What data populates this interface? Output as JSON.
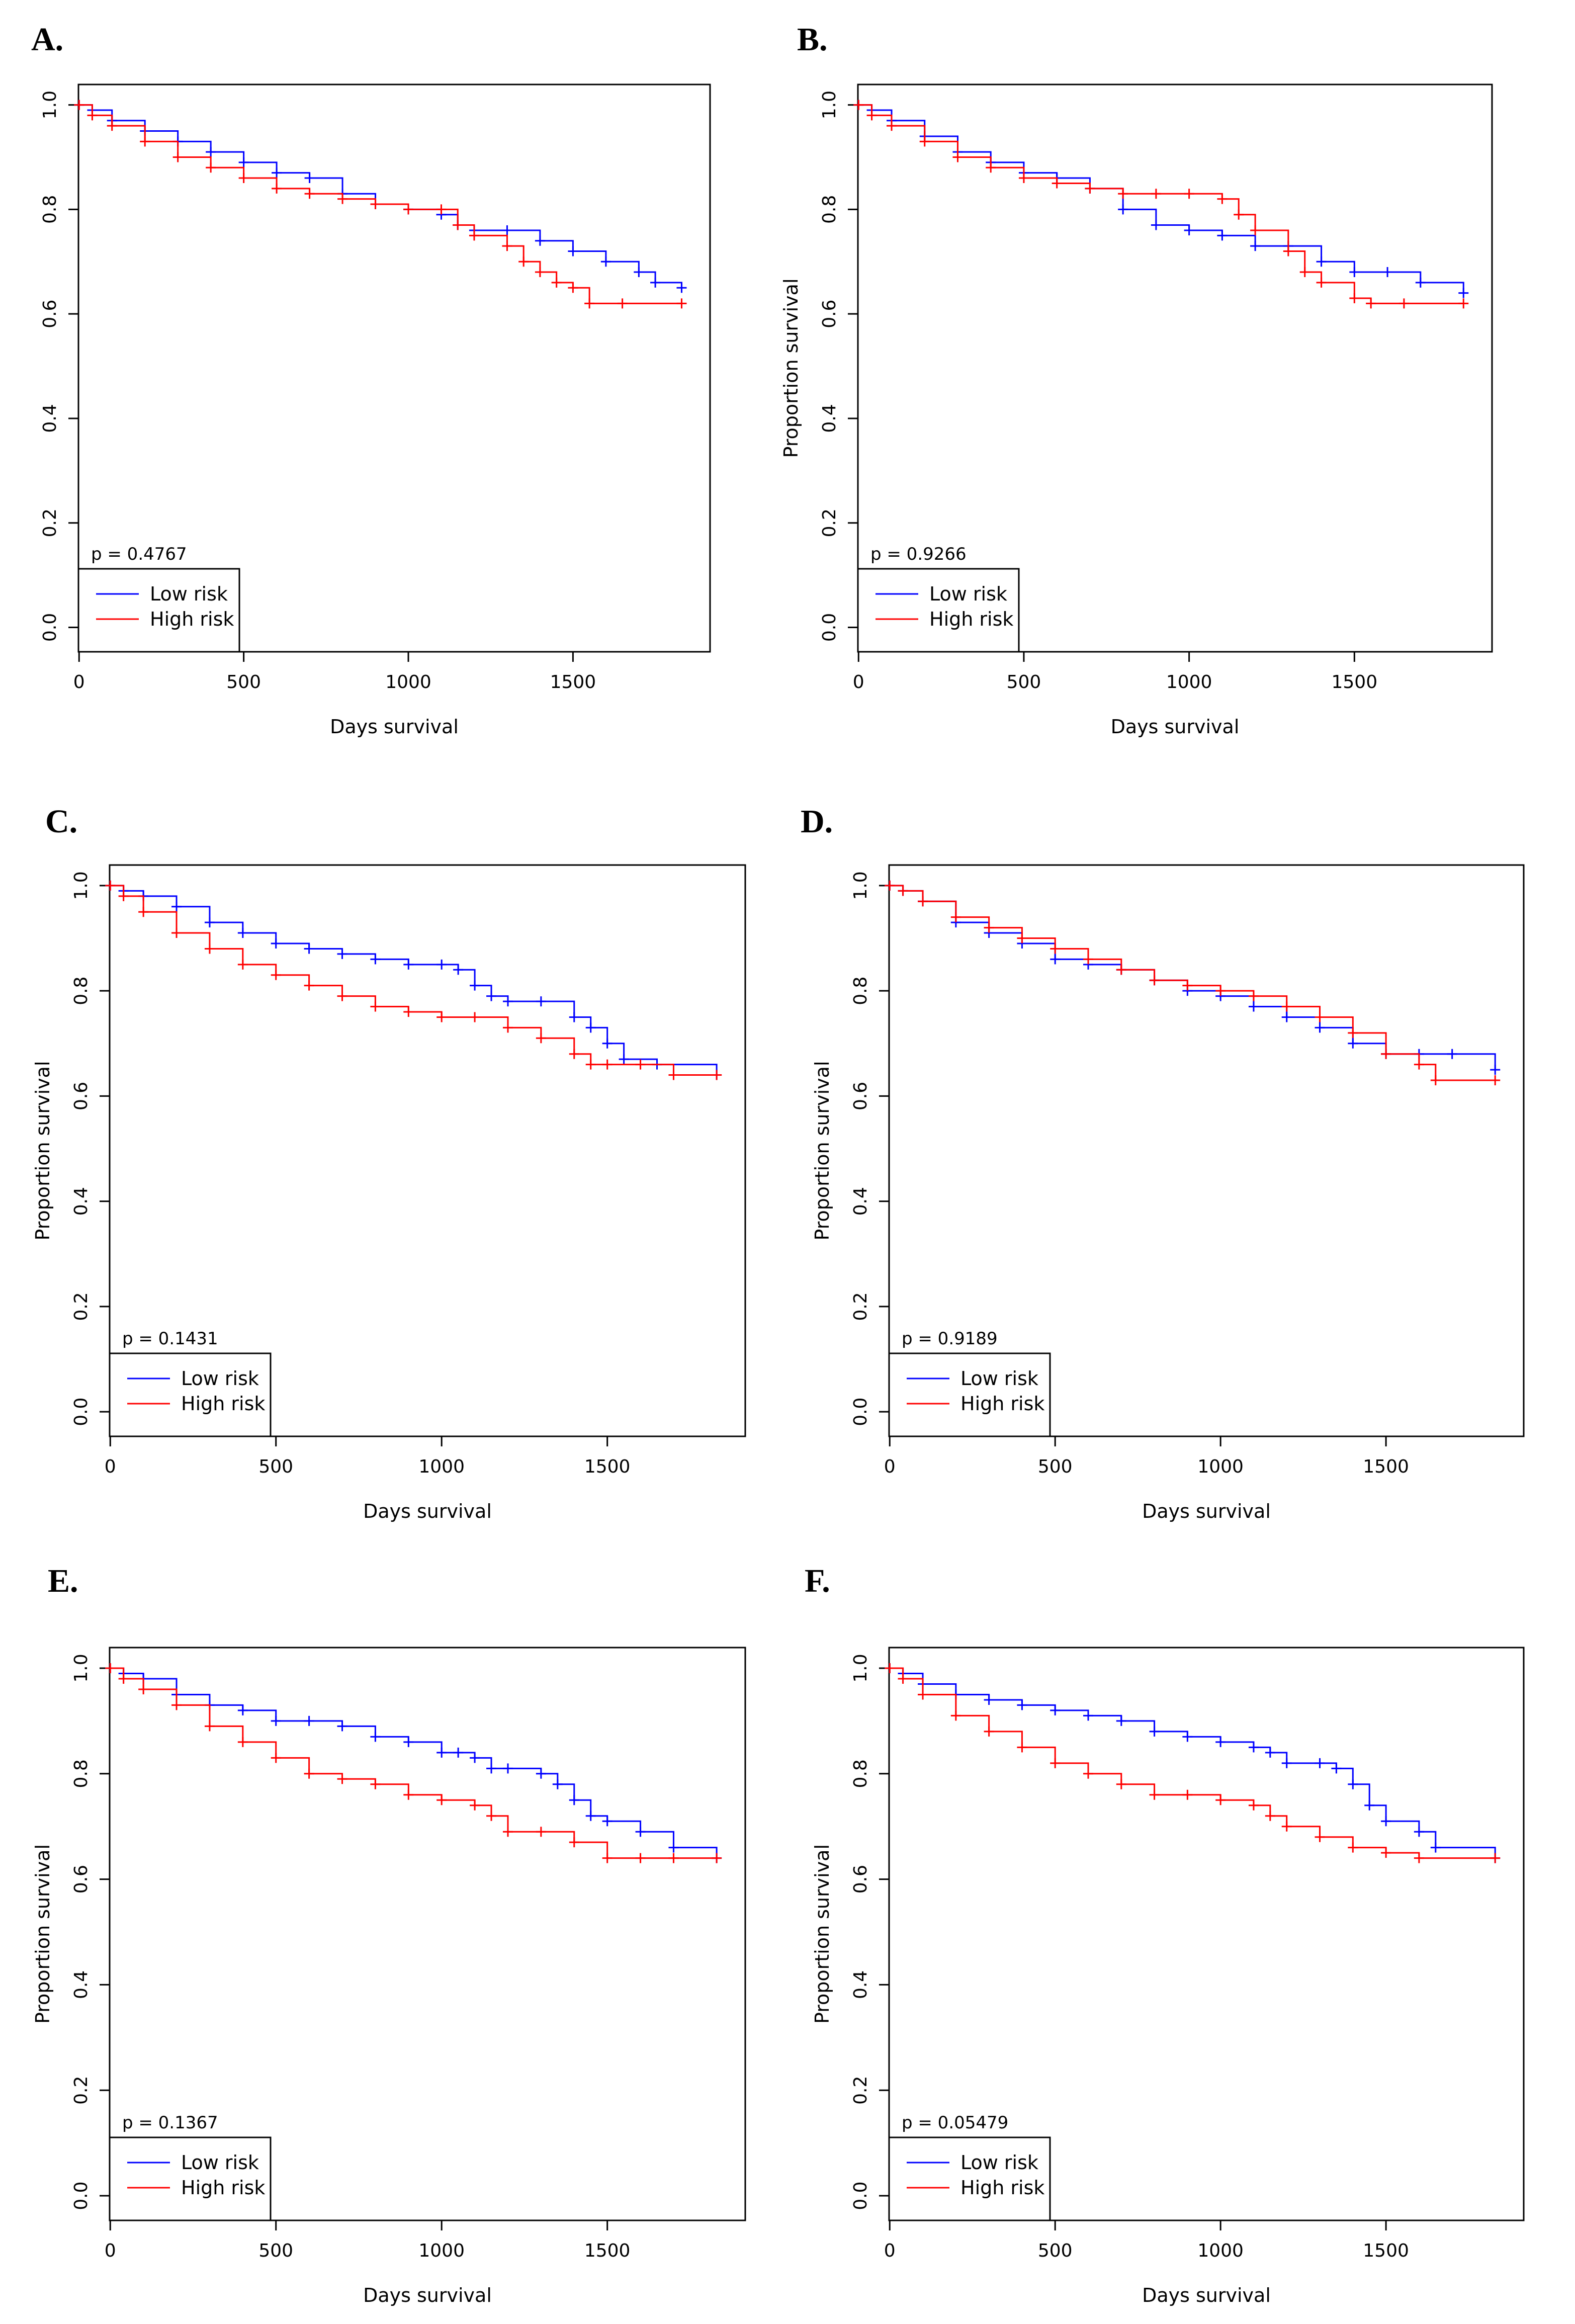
{
  "figure": {
    "panels_text": [
      "A.",
      "B.",
      "C.",
      "D.",
      "E.",
      "F."
    ]
  },
  "chart_data": [
    {
      "panel": "A.",
      "type": "line",
      "title": "",
      "xlabel": "Days survival",
      "ylabel": "",
      "xlim": [
        0,
        1850
      ],
      "ylim": [
        0,
        1.0
      ],
      "xticks": [
        "0",
        "500",
        "1000",
        "1500"
      ],
      "yticks": [
        "0.0",
        "0.2",
        "0.4",
        "0.6",
        "0.8",
        "1.0"
      ],
      "pvalue": "p = 0.4767",
      "legend": [
        "Low risk",
        "High risk"
      ],
      "legend_position": "bottom-left",
      "series": [
        {
          "name": "Low risk",
          "color": "#0000ff",
          "x": [
            0,
            40,
            100,
            200,
            300,
            400,
            500,
            600,
            700,
            800,
            900,
            1000,
            1100,
            1150,
            1200,
            1300,
            1400,
            1500,
            1600,
            1700,
            1750,
            1830
          ],
          "y": [
            1.0,
            0.99,
            0.97,
            0.95,
            0.93,
            0.91,
            0.89,
            0.87,
            0.86,
            0.83,
            0.81,
            0.8,
            0.79,
            0.77,
            0.76,
            0.76,
            0.74,
            0.72,
            0.7,
            0.68,
            0.66,
            0.65
          ]
        },
        {
          "name": "High risk",
          "color": "#ff0000",
          "x": [
            0,
            40,
            100,
            200,
            300,
            400,
            500,
            600,
            700,
            800,
            900,
            1000,
            1100,
            1150,
            1200,
            1300,
            1350,
            1400,
            1450,
            1500,
            1550,
            1650,
            1830
          ],
          "y": [
            1.0,
            0.98,
            0.96,
            0.93,
            0.9,
            0.88,
            0.86,
            0.84,
            0.83,
            0.82,
            0.81,
            0.8,
            0.8,
            0.77,
            0.75,
            0.73,
            0.7,
            0.68,
            0.66,
            0.65,
            0.62,
            0.62,
            0.62
          ]
        }
      ]
    },
    {
      "panel": "B.",
      "type": "line",
      "title": "",
      "xlabel": "Days survival",
      "ylabel": "Proportion survival",
      "xlim": [
        0,
        1850
      ],
      "ylim": [
        0,
        1.0
      ],
      "xticks": [
        "0",
        "500",
        "1000",
        "1500"
      ],
      "yticks": [
        "0.0",
        "0.2",
        "0.4",
        "0.6",
        "0.8",
        "1.0"
      ],
      "pvalue": "p = 0.9266",
      "legend": [
        "Low risk",
        "High risk"
      ],
      "legend_position": "bottom-left",
      "series": [
        {
          "name": "Low risk",
          "color": "#0000ff",
          "x": [
            0,
            40,
            100,
            200,
            300,
            400,
            500,
            600,
            700,
            800,
            900,
            1000,
            1100,
            1200,
            1300,
            1400,
            1500,
            1600,
            1700,
            1830
          ],
          "y": [
            1.0,
            0.99,
            0.97,
            0.94,
            0.91,
            0.89,
            0.87,
            0.86,
            0.84,
            0.8,
            0.77,
            0.76,
            0.75,
            0.73,
            0.73,
            0.7,
            0.68,
            0.68,
            0.66,
            0.64
          ]
        },
        {
          "name": "High risk",
          "color": "#ff0000",
          "x": [
            0,
            40,
            100,
            200,
            300,
            400,
            500,
            600,
            700,
            800,
            900,
            1000,
            1100,
            1150,
            1200,
            1300,
            1350,
            1400,
            1500,
            1550,
            1650,
            1830
          ],
          "y": [
            1.0,
            0.98,
            0.96,
            0.93,
            0.9,
            0.88,
            0.86,
            0.85,
            0.84,
            0.83,
            0.83,
            0.83,
            0.82,
            0.79,
            0.76,
            0.72,
            0.68,
            0.66,
            0.63,
            0.62,
            0.62,
            0.62
          ]
        }
      ]
    },
    {
      "panel": "C.",
      "type": "line",
      "title": "",
      "xlabel": "Days survival",
      "ylabel": "Proportion survival",
      "xlim": [
        0,
        1850
      ],
      "ylim": [
        0,
        1.0
      ],
      "xticks": [
        "0",
        "500",
        "1000",
        "1500"
      ],
      "yticks": [
        "0.0",
        "0.2",
        "0.4",
        "0.6",
        "0.8",
        "1.0"
      ],
      "pvalue": "p = 0.1431",
      "legend": [
        "Low risk",
        "High risk"
      ],
      "legend_position": "bottom-left",
      "series": [
        {
          "name": "Low risk",
          "color": "#0000ff",
          "x": [
            0,
            40,
            100,
            200,
            300,
            400,
            500,
            600,
            700,
            800,
            900,
            1000,
            1050,
            1100,
            1150,
            1200,
            1300,
            1400,
            1450,
            1500,
            1550,
            1650,
            1830
          ],
          "y": [
            1.0,
            0.99,
            0.98,
            0.96,
            0.93,
            0.91,
            0.89,
            0.88,
            0.87,
            0.86,
            0.85,
            0.85,
            0.84,
            0.81,
            0.79,
            0.78,
            0.78,
            0.75,
            0.73,
            0.7,
            0.67,
            0.66,
            0.64
          ]
        },
        {
          "name": "High risk",
          "color": "#ff0000",
          "x": [
            0,
            40,
            100,
            200,
            300,
            400,
            500,
            600,
            700,
            800,
            900,
            1000,
            1100,
            1200,
            1300,
            1400,
            1450,
            1500,
            1600,
            1700,
            1830
          ],
          "y": [
            1.0,
            0.98,
            0.95,
            0.91,
            0.88,
            0.85,
            0.83,
            0.81,
            0.79,
            0.77,
            0.76,
            0.75,
            0.75,
            0.73,
            0.71,
            0.68,
            0.66,
            0.66,
            0.66,
            0.64,
            0.64
          ]
        }
      ]
    },
    {
      "panel": "D.",
      "type": "line",
      "title": "",
      "xlabel": "Days survival",
      "ylabel": "Proportion survival",
      "xlim": [
        0,
        1850
      ],
      "ylim": [
        0,
        1.0
      ],
      "xticks": [
        "0",
        "500",
        "1000",
        "1500"
      ],
      "yticks": [
        "0.0",
        "0.2",
        "0.4",
        "0.6",
        "0.8",
        "1.0"
      ],
      "pvalue": "p = 0.9189",
      "legend": [
        "Low risk",
        "High risk"
      ],
      "legend_position": "bottom-left",
      "series": [
        {
          "name": "Low risk",
          "color": "#0000ff",
          "x": [
            0,
            40,
            100,
            200,
            300,
            400,
            500,
            600,
            700,
            800,
            900,
            1000,
            1100,
            1200,
            1300,
            1400,
            1500,
            1600,
            1700,
            1830
          ],
          "y": [
            1.0,
            0.99,
            0.97,
            0.93,
            0.91,
            0.89,
            0.86,
            0.85,
            0.84,
            0.82,
            0.8,
            0.79,
            0.77,
            0.75,
            0.73,
            0.7,
            0.68,
            0.68,
            0.68,
            0.65
          ]
        },
        {
          "name": "High risk",
          "color": "#ff0000",
          "x": [
            0,
            40,
            100,
            200,
            300,
            400,
            500,
            600,
            700,
            800,
            900,
            1000,
            1100,
            1200,
            1300,
            1400,
            1500,
            1600,
            1650,
            1830
          ],
          "y": [
            1.0,
            0.99,
            0.97,
            0.94,
            0.92,
            0.9,
            0.88,
            0.86,
            0.84,
            0.82,
            0.81,
            0.8,
            0.79,
            0.77,
            0.75,
            0.72,
            0.68,
            0.66,
            0.63,
            0.63
          ]
        }
      ]
    },
    {
      "panel": "E.",
      "type": "line",
      "title": "",
      "xlabel": "Days survival",
      "ylabel": "Proportion survival",
      "xlim": [
        0,
        1850
      ],
      "ylim": [
        0,
        1.0
      ],
      "xticks": [
        "0",
        "500",
        "1000",
        "1500"
      ],
      "yticks": [
        "0.0",
        "0.2",
        "0.4",
        "0.6",
        "0.8",
        "1.0"
      ],
      "pvalue": "p = 0.1367",
      "legend": [
        "Low risk",
        "High risk"
      ],
      "legend_position": "bottom-left",
      "series": [
        {
          "name": "Low risk",
          "color": "#0000ff",
          "x": [
            0,
            40,
            100,
            200,
            300,
            400,
            500,
            600,
            700,
            800,
            900,
            1000,
            1050,
            1100,
            1150,
            1200,
            1300,
            1350,
            1400,
            1450,
            1500,
            1600,
            1700,
            1830
          ],
          "y": [
            1.0,
            0.99,
            0.98,
            0.95,
            0.93,
            0.92,
            0.9,
            0.9,
            0.89,
            0.87,
            0.86,
            0.84,
            0.84,
            0.83,
            0.81,
            0.81,
            0.8,
            0.78,
            0.75,
            0.72,
            0.71,
            0.69,
            0.66,
            0.64
          ]
        },
        {
          "name": "High risk",
          "color": "#ff0000",
          "x": [
            0,
            40,
            100,
            200,
            300,
            400,
            500,
            600,
            700,
            800,
            900,
            1000,
            1100,
            1150,
            1200,
            1300,
            1400,
            1500,
            1600,
            1700,
            1830
          ],
          "y": [
            1.0,
            0.98,
            0.96,
            0.93,
            0.89,
            0.86,
            0.83,
            0.8,
            0.79,
            0.78,
            0.76,
            0.75,
            0.74,
            0.72,
            0.69,
            0.69,
            0.67,
            0.64,
            0.64,
            0.64,
            0.64
          ]
        }
      ]
    },
    {
      "panel": "F.",
      "type": "line",
      "title": "",
      "xlabel": "Days survival",
      "ylabel": "Proportion survival",
      "xlim": [
        0,
        1850
      ],
      "ylim": [
        0,
        1.0
      ],
      "xticks": [
        "0",
        "500",
        "1000",
        "1500"
      ],
      "yticks": [
        "0.0",
        "0.2",
        "0.4",
        "0.6",
        "0.8",
        "1.0"
      ],
      "pvalue": "p = 0.05479",
      "legend": [
        "Low risk",
        "High risk"
      ],
      "legend_position": "bottom-left",
      "series": [
        {
          "name": "Low risk",
          "color": "#0000ff",
          "x": [
            0,
            40,
            100,
            200,
            300,
            400,
            500,
            600,
            700,
            800,
            900,
            1000,
            1100,
            1150,
            1200,
            1300,
            1350,
            1400,
            1450,
            1500,
            1600,
            1650,
            1830
          ],
          "y": [
            1.0,
            0.99,
            0.97,
            0.95,
            0.94,
            0.93,
            0.92,
            0.91,
            0.9,
            0.88,
            0.87,
            0.86,
            0.85,
            0.84,
            0.82,
            0.82,
            0.81,
            0.78,
            0.74,
            0.71,
            0.69,
            0.66,
            0.64
          ]
        },
        {
          "name": "High risk",
          "color": "#ff0000",
          "x": [
            0,
            40,
            100,
            200,
            300,
            400,
            500,
            600,
            700,
            800,
            900,
            1000,
            1100,
            1150,
            1200,
            1300,
            1400,
            1500,
            1600,
            1830
          ],
          "y": [
            1.0,
            0.98,
            0.95,
            0.91,
            0.88,
            0.85,
            0.82,
            0.8,
            0.78,
            0.76,
            0.76,
            0.75,
            0.74,
            0.72,
            0.7,
            0.68,
            0.66,
            0.65,
            0.64,
            0.64
          ]
        }
      ]
    }
  ]
}
